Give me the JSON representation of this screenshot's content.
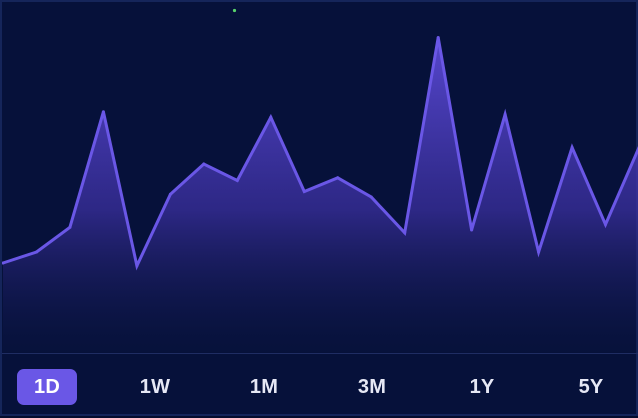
{
  "colors": {
    "background": "#06113a",
    "line": "#6a57e6",
    "fill_top": "#5b4ad6",
    "fill_bottom": "#0a1440",
    "active_button": "#6a57e6",
    "button_text": "#e6e8f5",
    "indicator": "#58d36a"
  },
  "range_selector": {
    "options": [
      {
        "label": "1D",
        "active": true
      },
      {
        "label": "1W",
        "active": false
      },
      {
        "label": "1M",
        "active": false
      },
      {
        "label": "3M",
        "active": false
      },
      {
        "label": "1Y",
        "active": false
      },
      {
        "label": "5Y",
        "active": false
      }
    ]
  },
  "chart_data": {
    "type": "area",
    "title": "",
    "xlabel": "",
    "ylabel": "",
    "grid": false,
    "legend": "none",
    "ylim": [
      0,
      100
    ],
    "series": [
      {
        "values": [
          16,
          20,
          29,
          71,
          15,
          41,
          52,
          46,
          69,
          42,
          47,
          40,
          27,
          98,
          28,
          70,
          20,
          58,
          30,
          58
        ]
      }
    ]
  }
}
